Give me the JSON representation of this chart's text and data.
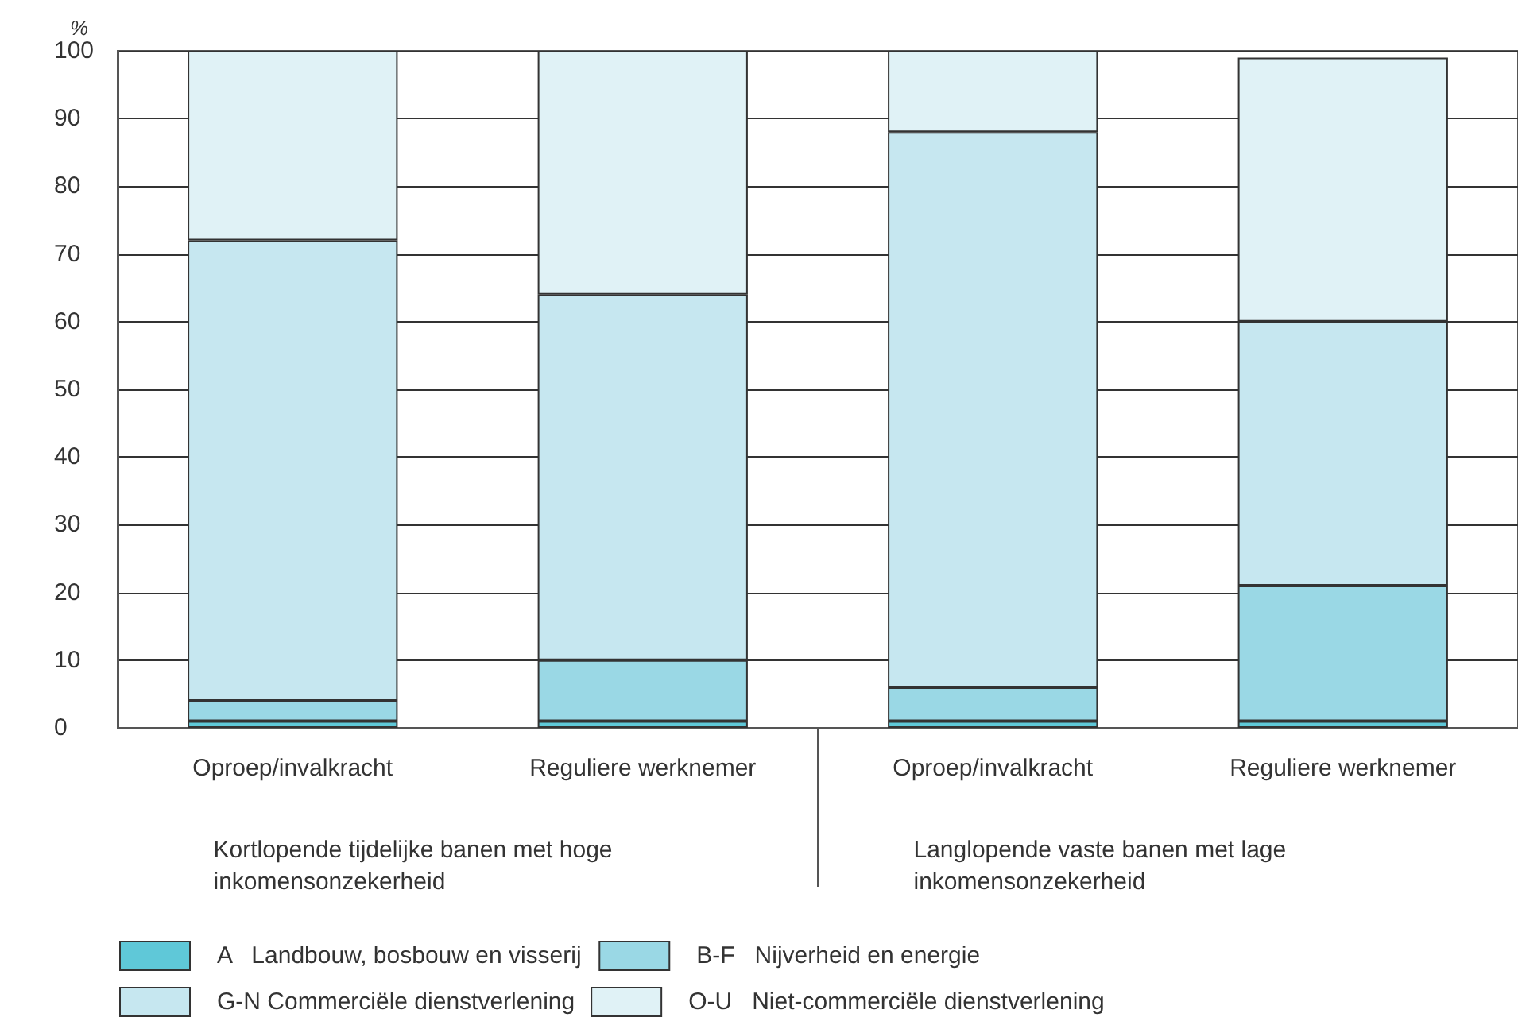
{
  "chart_data": {
    "type": "bar",
    "stacked": true,
    "ylabel": "%",
    "categories": [
      "Oproep/invalkracht",
      "Reguliere werknemer",
      "Oproep/invalkracht",
      "Reguliere werknemer"
    ],
    "series": [
      {
        "name": "A   Landbouw, bosbouw en visserij",
        "color": "#5fc8d8",
        "values": [
          1,
          1,
          1,
          1
        ]
      },
      {
        "name": "B-F   Nijverheid en energie",
        "color": "#9ad8e5",
        "values": [
          3,
          9,
          5,
          20
        ]
      },
      {
        "name": "G-N Commerciële dienstverlening",
        "color": "#c6e7f0",
        "values": [
          68,
          54,
          82,
          39
        ]
      },
      {
        "name": "O-U   Niet-commerciële dienstverlening",
        "color": "#e0f2f6",
        "values": [
          28,
          36,
          12,
          39
        ]
      }
    ],
    "ylim": [
      0,
      100
    ],
    "yticks": [
      0,
      10,
      20,
      30,
      40,
      50,
      60,
      70,
      80,
      90,
      100
    ],
    "grid": "y",
    "legend": "bottom",
    "annotations": [
      "Kortlopende tijdelijke banen met hoge inkomensonzekerheid",
      "Langlopende vaste banen met lage inkomensonzekerheid"
    ]
  }
}
